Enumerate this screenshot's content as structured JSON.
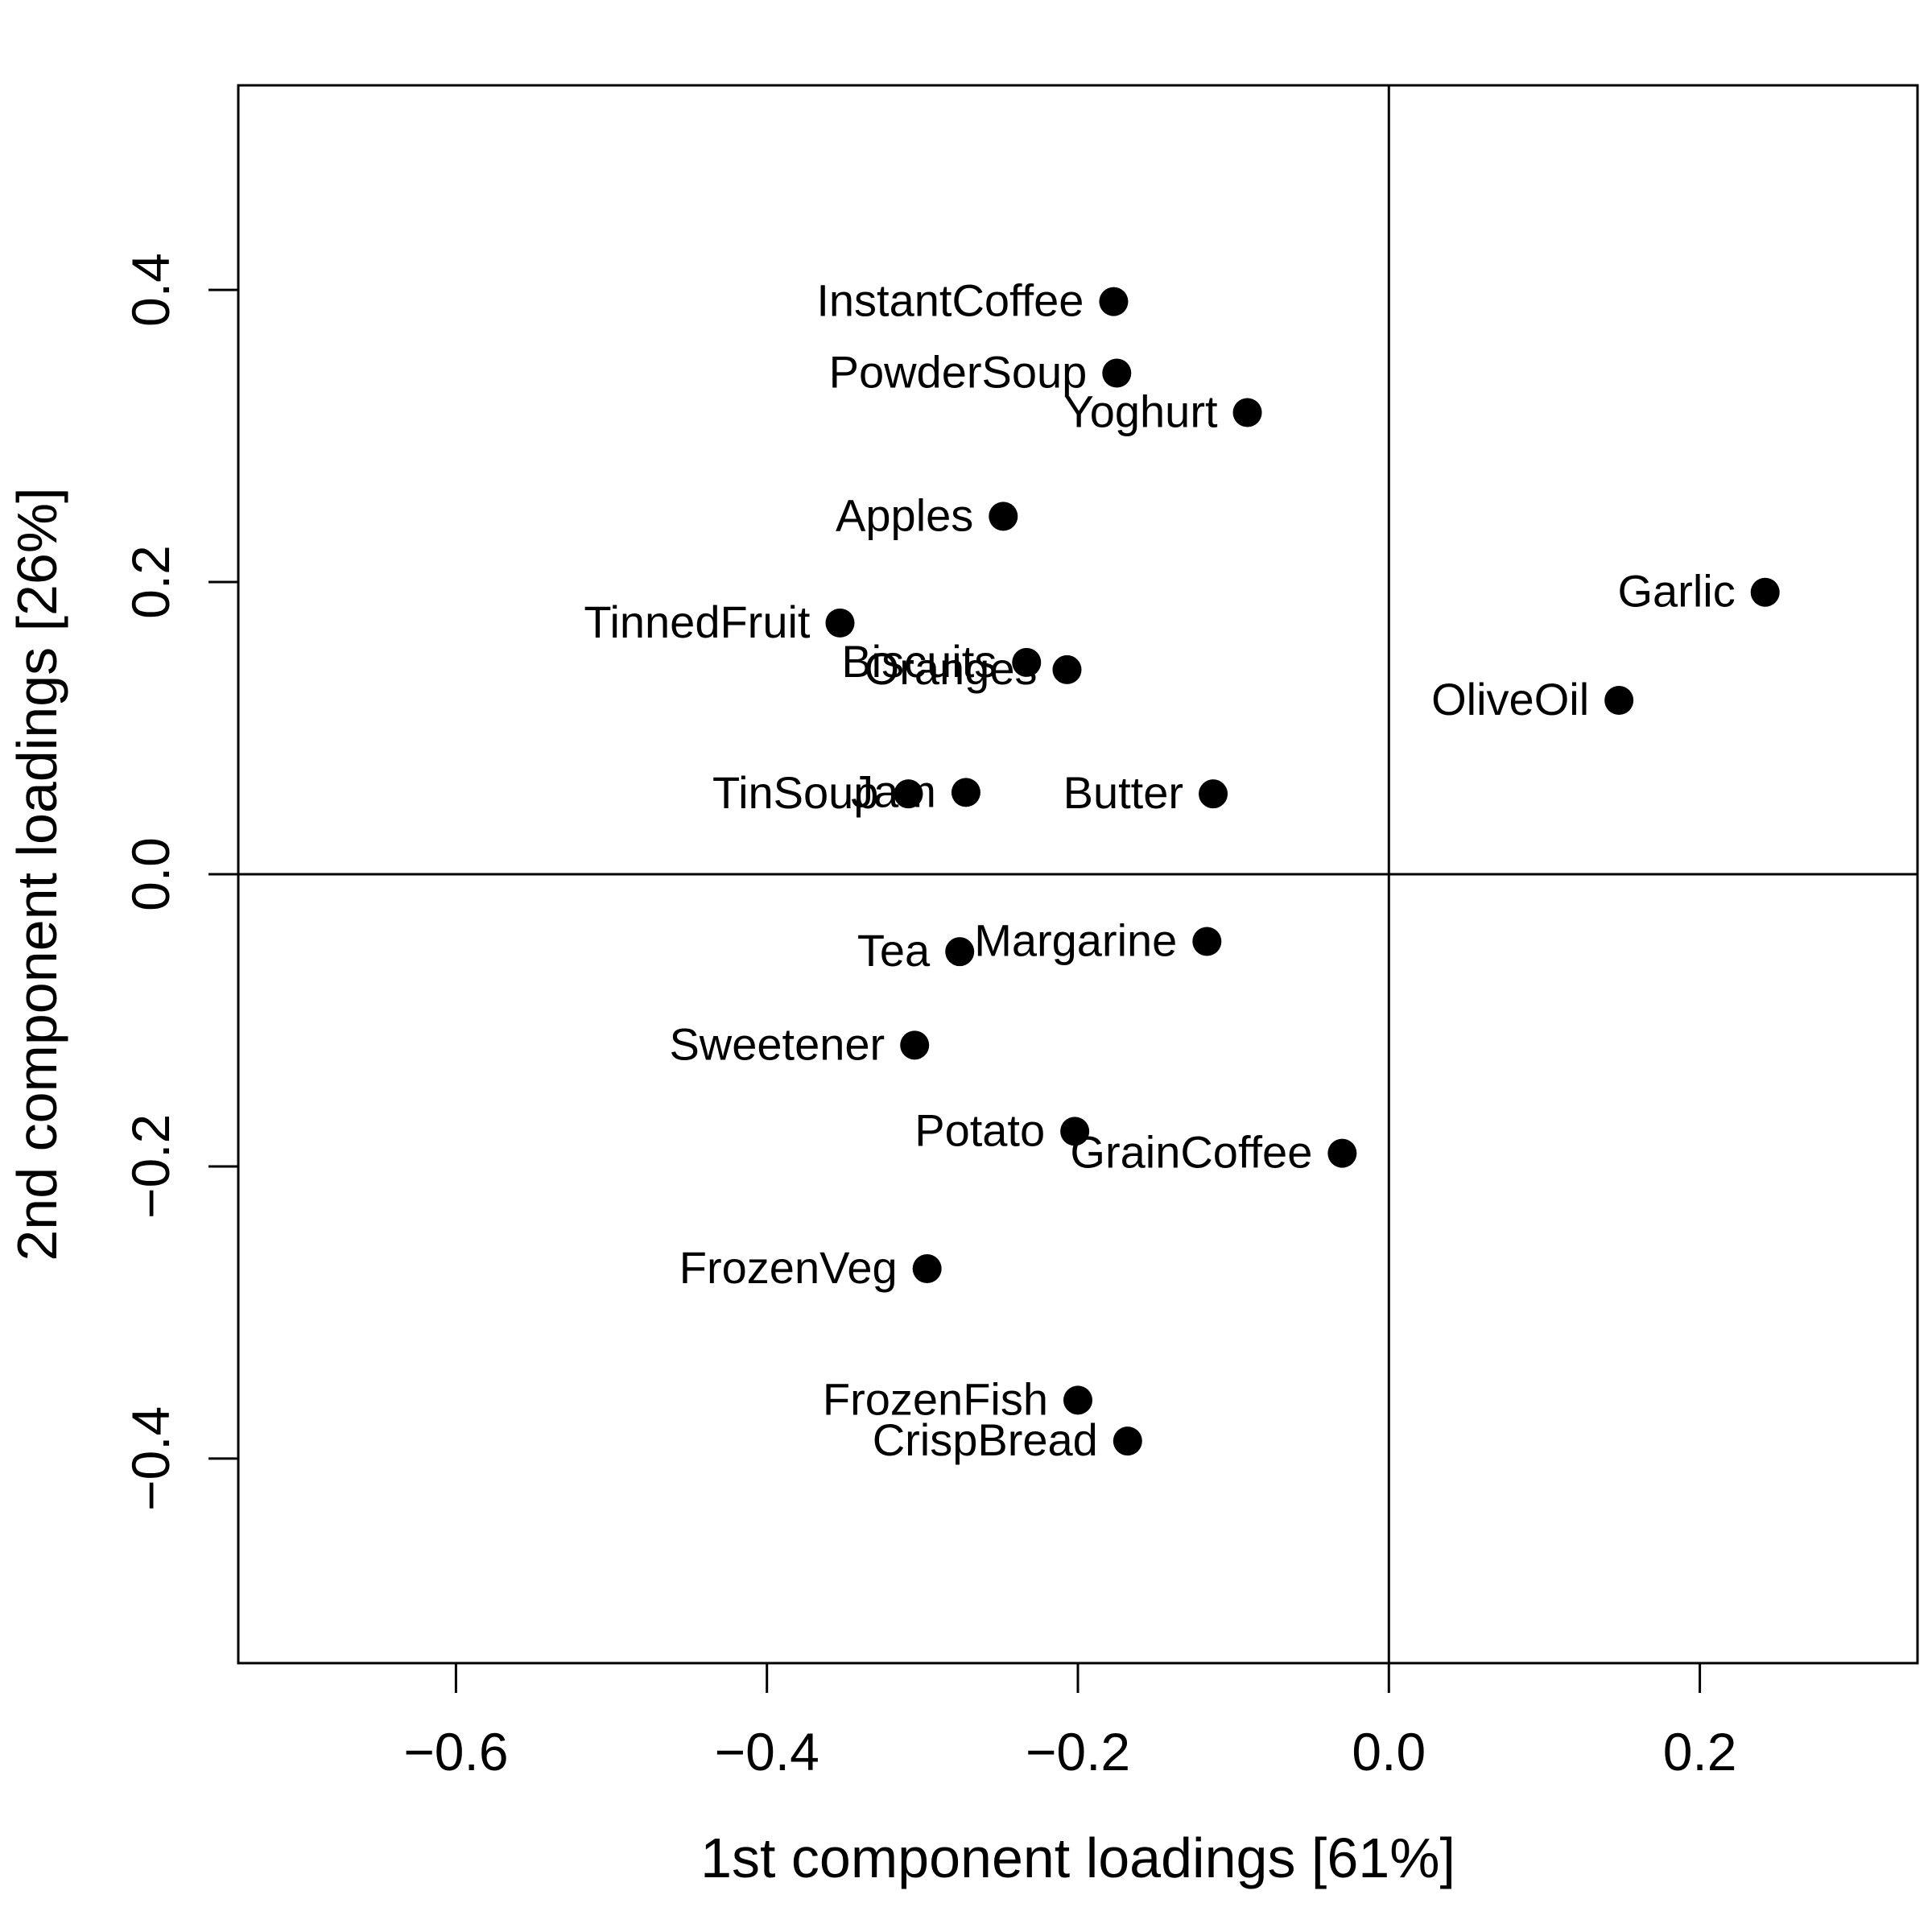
{
  "chart_data": {
    "type": "scatter",
    "xlabel": "1st component loadings [61%]",
    "ylabel": "2nd component loadings [26%]",
    "xlim": [
      -0.74,
      0.34
    ],
    "ylim": [
      -0.54,
      0.54
    ],
    "xticks": [
      -0.6,
      -0.4,
      -0.2,
      0.0,
      0.2
    ],
    "yticks": [
      -0.4,
      -0.2,
      0.0,
      0.2,
      0.4
    ],
    "xtick_labels": [
      "−0.6",
      "−0.4",
      "−0.2",
      "0.0",
      "0.2"
    ],
    "ytick_labels": [
      "−0.4",
      "−0.2",
      "0.0",
      "0.2",
      "0.4"
    ],
    "reference_lines": {
      "x": 0.0,
      "y": 0.0
    },
    "grid": false,
    "marker_color": "#000000",
    "points": [
      {
        "label": "InstantCoffee",
        "x": -0.177,
        "y": 0.392
      },
      {
        "label": "PowderSoup",
        "x": -0.175,
        "y": 0.343
      },
      {
        "label": "Yoghurt",
        "x": -0.091,
        "y": 0.316
      },
      {
        "label": "Apples",
        "x": -0.248,
        "y": 0.245
      },
      {
        "label": "Garlic",
        "x": 0.242,
        "y": 0.193
      },
      {
        "label": "TinnedFruit",
        "x": -0.353,
        "y": 0.172
      },
      {
        "label": "Biscuits",
        "x": -0.233,
        "y": 0.145
      },
      {
        "label": "Oranges",
        "x": -0.207,
        "y": 0.14
      },
      {
        "label": "OliveOil",
        "x": 0.148,
        "y": 0.119
      },
      {
        "label": "TinSoup",
        "x": -0.309,
        "y": 0.055
      },
      {
        "label": "Jam",
        "x": -0.272,
        "y": 0.056
      },
      {
        "label": "Butter",
        "x": -0.113,
        "y": 0.055
      },
      {
        "label": "Margarine",
        "x": -0.117,
        "y": -0.046
      },
      {
        "label": "Tea",
        "x": -0.276,
        "y": -0.053
      },
      {
        "label": "Sweetener",
        "x": -0.305,
        "y": -0.117
      },
      {
        "label": "Potato",
        "x": -0.202,
        "y": -0.176
      },
      {
        "label": "GrainCoffee",
        "x": -0.03,
        "y": -0.191
      },
      {
        "label": "FrozenVeg",
        "x": -0.297,
        "y": -0.27
      },
      {
        "label": "FrozenFish",
        "x": -0.2,
        "y": -0.36
      },
      {
        "label": "CrispBread",
        "x": -0.168,
        "y": -0.388
      }
    ]
  }
}
